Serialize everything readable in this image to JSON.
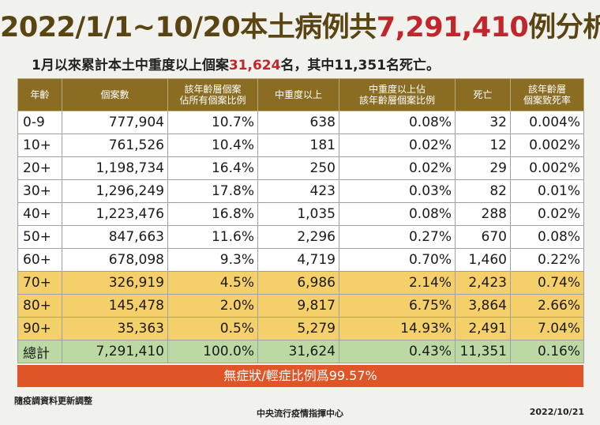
{
  "title": {
    "prefix": "2022/1/1~10/20本土病例共",
    "highlight": "7,291,410",
    "suffix": "例分析"
  },
  "subtitle": {
    "prefix": "1月以來累計本土中重度以上個案",
    "highlight": "31,624",
    "suffix": "名，其中11,351名死亡。"
  },
  "table": {
    "headers": [
      "年齡",
      "個案數",
      "該年齡層個案\n佔所有個案比例",
      "中重度以上",
      "中重度以上佔\n該年齡層個案比例",
      "死亡",
      "該年齡層\n個案致死率"
    ],
    "rows": [
      {
        "age": "0-9",
        "cases": "777,904",
        "pct_all": "10.7%",
        "severe": "638",
        "severe_pct": "0.08%",
        "deaths": "32",
        "cfr": "0.004%",
        "style": "norm"
      },
      {
        "age": "10+",
        "cases": "761,526",
        "pct_all": "10.4%",
        "severe": "181",
        "severe_pct": "0.02%",
        "deaths": "12",
        "cfr": "0.002%",
        "style": "norm"
      },
      {
        "age": "20+",
        "cases": "1,198,734",
        "pct_all": "16.4%",
        "severe": "250",
        "severe_pct": "0.02%",
        "deaths": "29",
        "cfr": "0.002%",
        "style": "norm"
      },
      {
        "age": "30+",
        "cases": "1,296,249",
        "pct_all": "17.8%",
        "severe": "423",
        "severe_pct": "0.03%",
        "deaths": "82",
        "cfr": "0.01%",
        "style": "norm"
      },
      {
        "age": "40+",
        "cases": "1,223,476",
        "pct_all": "16.8%",
        "severe": "1,035",
        "severe_pct": "0.08%",
        "deaths": "288",
        "cfr": "0.02%",
        "style": "norm"
      },
      {
        "age": "50+",
        "cases": "847,663",
        "pct_all": "11.6%",
        "severe": "2,296",
        "severe_pct": "0.27%",
        "deaths": "670",
        "cfr": "0.08%",
        "style": "norm"
      },
      {
        "age": "60+",
        "cases": "678,098",
        "pct_all": "9.3%",
        "severe": "4,719",
        "severe_pct": "0.70%",
        "deaths": "1,460",
        "cfr": "0.22%",
        "style": "norm"
      },
      {
        "age": "70+",
        "cases": "326,919",
        "pct_all": "4.5%",
        "severe": "6,986",
        "severe_pct": "2.14%",
        "deaths": "2,423",
        "cfr": "0.74%",
        "style": "hi"
      },
      {
        "age": "80+",
        "cases": "145,478",
        "pct_all": "2.0%",
        "severe": "9,817",
        "severe_pct": "6.75%",
        "deaths": "3,864",
        "cfr": "2.66%",
        "style": "hi"
      },
      {
        "age": "90+",
        "cases": "35,363",
        "pct_all": "0.5%",
        "severe": "5,279",
        "severe_pct": "14.93%",
        "deaths": "2,491",
        "cfr": "7.04%",
        "style": "hi"
      },
      {
        "age": "總計",
        "cases": "7,291,410",
        "pct_all": "100.0%",
        "severe": "31,624",
        "severe_pct": "0.43%",
        "deaths": "11,351",
        "cfr": "0.16%",
        "style": "total"
      }
    ]
  },
  "banner": "無症狀/輕症比例爲99.57%",
  "note": "隨疫調資料更新調整",
  "footer": "中央流行疫情指揮中心",
  "date": "2022/10/21",
  "colors": {
    "header_bg": "#8a6d22",
    "highlight_red": "#c0262c",
    "elderly_rows": "#f5cf6a",
    "total_row": "#bcd9a4",
    "banner": "#e05528"
  }
}
